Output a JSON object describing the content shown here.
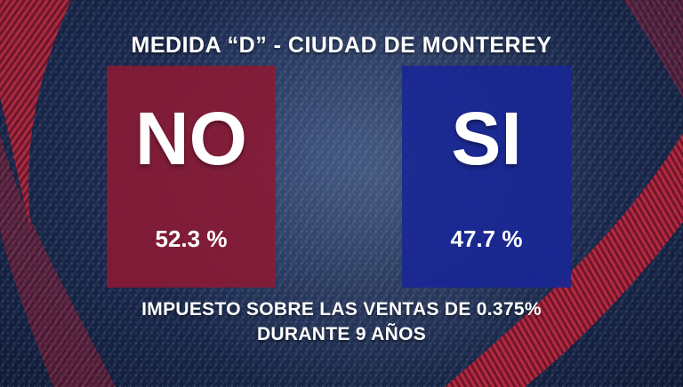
{
  "title": "MEDIDA “D” - CIUDAD DE MONTEREY",
  "results": [
    {
      "label": "NO",
      "percent": "52.3 %",
      "color": "#8a1a34"
    },
    {
      "label": "SI",
      "percent": "47.7 %",
      "color": "#18268f"
    }
  ],
  "footer": {
    "line1": "IMPUESTO SOBRE LAS VENTAS DE 0.375%",
    "line2": "DURANTE 9 AÑOS"
  },
  "colors": {
    "background": "#1b2a50",
    "accent_red": "#c0203a",
    "text": "#ffffff"
  }
}
